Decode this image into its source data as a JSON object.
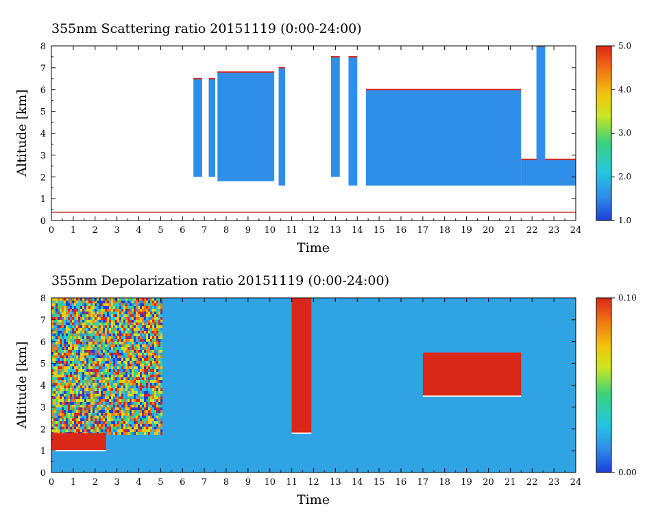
{
  "charts": [
    {
      "title": "355nm Scattering ratio  20151119 (0:00-24:00)",
      "xlabel": "Time",
      "ylabel": "Altitude [km]",
      "colorbar_ticks": [
        "5.0",
        "4.0",
        "3.0",
        "2.0",
        "1.0"
      ]
    },
    {
      "title": "355nm Depolarization ratio  20151119 (0:00-24:00)",
      "xlabel": "Time",
      "ylabel": "Altitude [km]",
      "colorbar_ticks": [
        "0.10",
        "0.00"
      ]
    }
  ],
  "colors": {
    "colormap": [
      "#1f3fd8",
      "#2f8fe8",
      "#26c6e0",
      "#3cd27a",
      "#c9e624",
      "#f2c511",
      "#f07814",
      "#d92818"
    ]
  },
  "chart_data": [
    {
      "type": "heatmap",
      "title": "355nm Scattering ratio  20151119 (0:00-24:00)",
      "xlabel": "Time",
      "ylabel": "Altitude [km]",
      "x_ticks": [
        0,
        1,
        2,
        3,
        4,
        5,
        6,
        7,
        8,
        9,
        10,
        11,
        12,
        13,
        14,
        15,
        16,
        17,
        18,
        19,
        20,
        21,
        22,
        23,
        24
      ],
      "y_ticks": [
        0,
        1,
        2,
        3,
        4,
        5,
        6,
        7,
        8
      ],
      "xlim": [
        0,
        24
      ],
      "ylim": [
        0,
        8
      ],
      "colorbar": {
        "min": 1.0,
        "max": 5.0,
        "ticks": [
          1.0,
          2.0,
          3.0,
          4.0,
          5.0
        ]
      },
      "features": [
        {
          "kind": "cloud_column",
          "t0": 6.5,
          "t1": 6.9,
          "z0": 2.0,
          "z1": 6.5,
          "value": 1.8
        },
        {
          "kind": "cloud_column",
          "t0": 7.2,
          "t1": 7.5,
          "z0": 2.0,
          "z1": 6.5,
          "value": 1.8
        },
        {
          "kind": "cloud_layer",
          "t0": 7.6,
          "t1": 10.2,
          "z0": 1.8,
          "z1": 6.8,
          "value": 1.9
        },
        {
          "kind": "cloud_column",
          "t0": 10.4,
          "t1": 10.7,
          "z0": 1.6,
          "z1": 7.0,
          "value": 1.7
        },
        {
          "kind": "cloud_column",
          "t0": 12.8,
          "t1": 13.2,
          "z0": 2.0,
          "z1": 7.5,
          "value": 1.8
        },
        {
          "kind": "cloud_column",
          "t0": 13.6,
          "t1": 14.0,
          "z0": 1.6,
          "z1": 7.5,
          "value": 1.8
        },
        {
          "kind": "cloud_layer",
          "t0": 14.4,
          "t1": 21.5,
          "z0": 1.6,
          "z1": 6.0,
          "value": 1.9
        },
        {
          "kind": "cloud_layer",
          "t0": 21.5,
          "t1": 24.0,
          "z0": 1.6,
          "z1": 2.8,
          "value": 1.6
        },
        {
          "kind": "cloud_column",
          "t0": 22.2,
          "t1": 22.6,
          "z0": 2.5,
          "z1": 8.0,
          "value": 1.6
        }
      ]
    },
    {
      "type": "heatmap",
      "title": "355nm Depolarization ratio  20151119 (0:00-24:00)",
      "xlabel": "Time",
      "ylabel": "Altitude [km]",
      "x_ticks": [
        0,
        1,
        2,
        3,
        4,
        5,
        6,
        7,
        8,
        9,
        10,
        11,
        12,
        13,
        14,
        15,
        16,
        17,
        18,
        19,
        20,
        21,
        22,
        23,
        24
      ],
      "y_ticks": [
        0,
        1,
        2,
        3,
        4,
        5,
        6,
        7,
        8
      ],
      "xlim": [
        0,
        24
      ],
      "ylim": [
        0,
        8
      ],
      "colorbar": {
        "min": 0.0,
        "max": 0.1,
        "ticks": [
          0.0,
          0.1
        ]
      },
      "features": [
        {
          "kind": "noisy_region",
          "t0": 0.0,
          "t1": 5.0,
          "z0": 1.8,
          "z1": 8.0
        },
        {
          "kind": "high_layer",
          "t0": 0.0,
          "t1": 2.5,
          "z0": 1.0,
          "z1": 1.8,
          "value": 0.1
        },
        {
          "kind": "high_column",
          "t0": 11.0,
          "t1": 11.9,
          "z0": 1.8,
          "z1": 8.0,
          "value": 0.09
        },
        {
          "kind": "high_band",
          "t0": 17.0,
          "t1": 21.5,
          "z0": 3.5,
          "z1": 5.5,
          "value": 0.1
        }
      ]
    }
  ]
}
